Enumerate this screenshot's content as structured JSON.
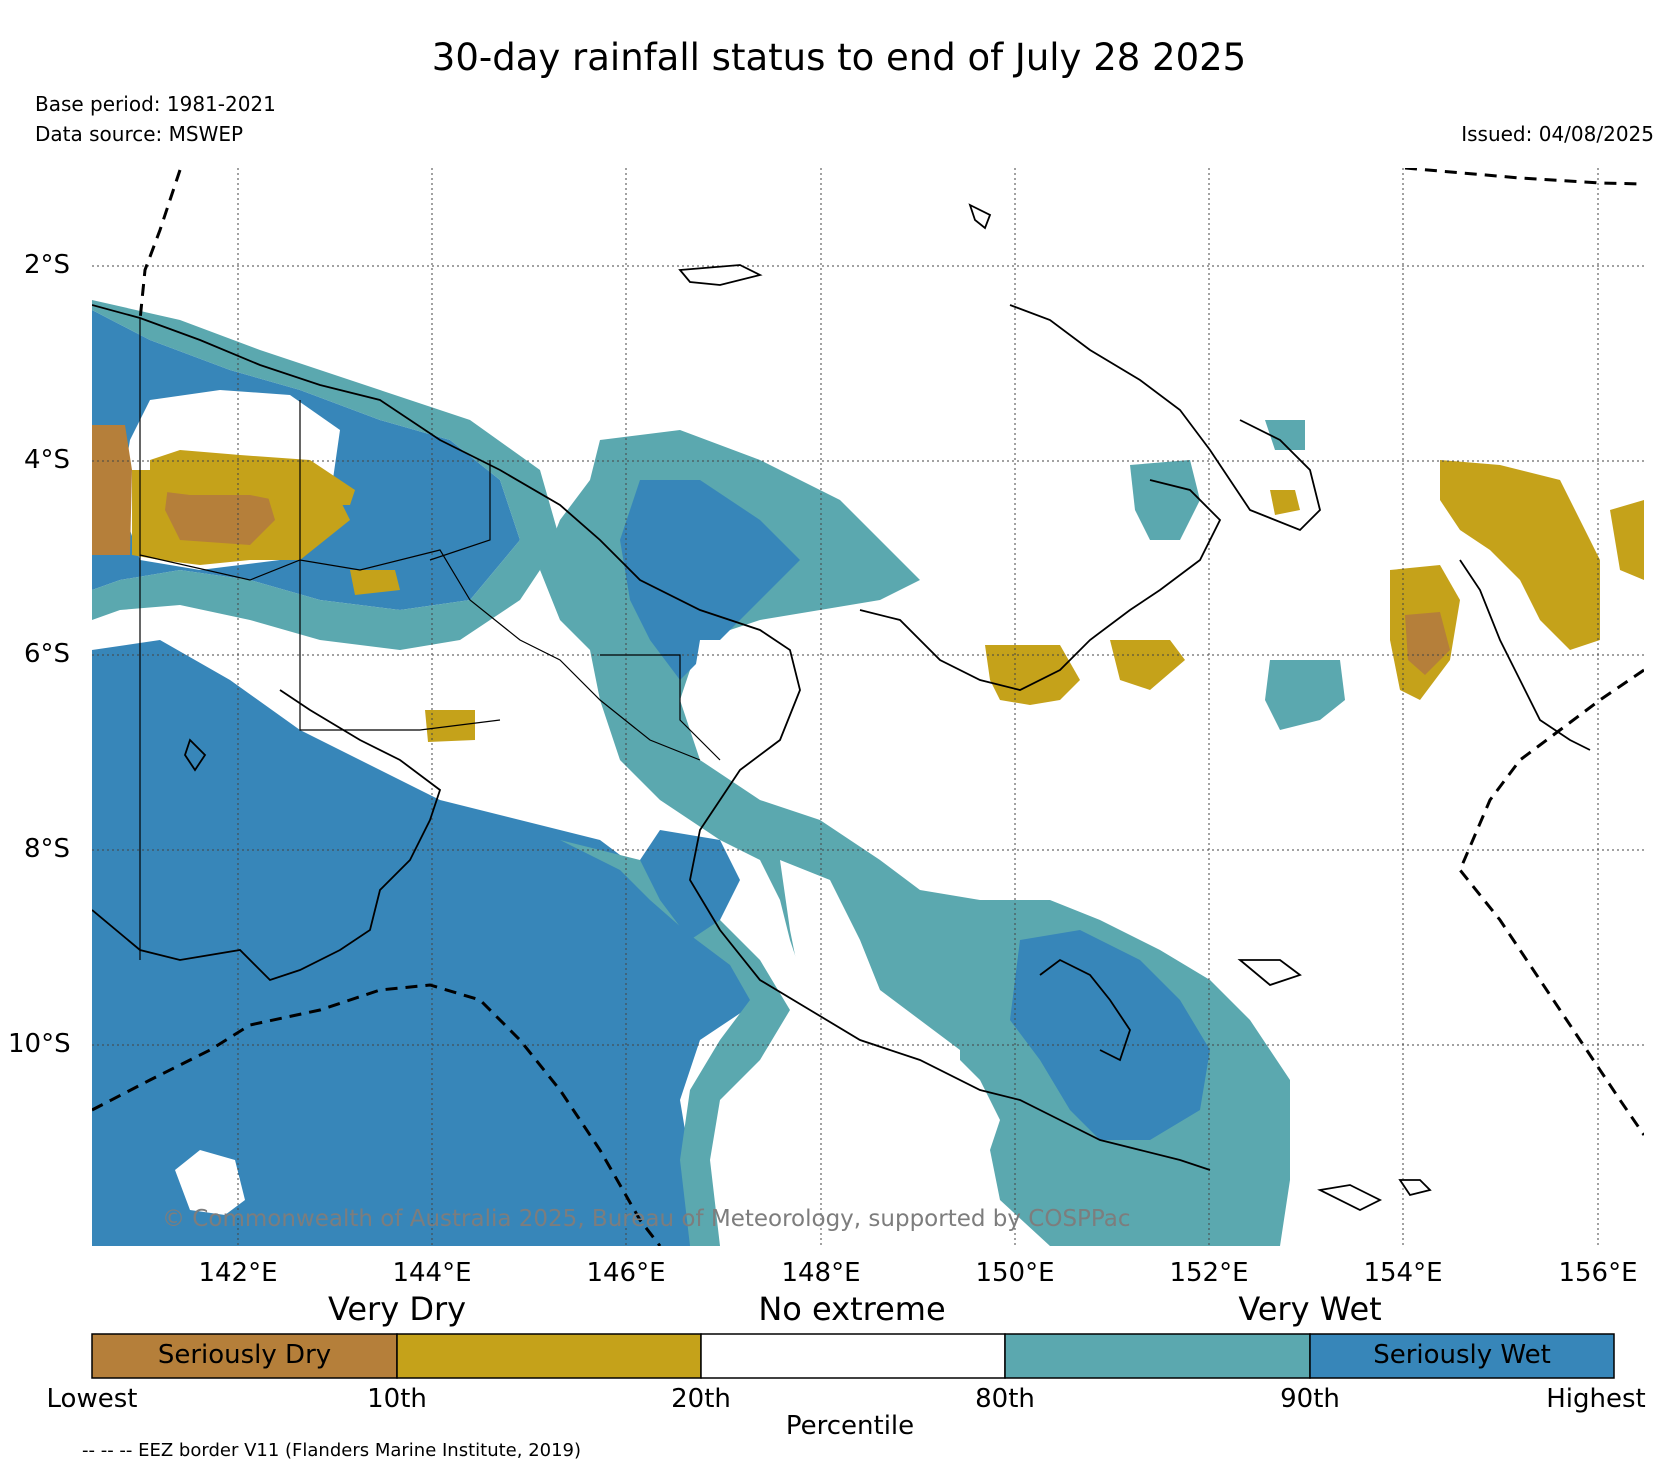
{
  "title": "30-day rainfall status to end of July 28 2025",
  "base_period": "Base period: 1981-2021",
  "data_source": "Data source: MSWEP",
  "issued": "Issued: 04/08/2025",
  "copyright": "© Commonwealth of Australia 2025, Bureau of Meteorology, supported by COSPPac",
  "eez_note": "-- -- -- EEZ border V11 (Flanders Marine Institute, 2019)",
  "map": {
    "lat_labels": [
      "2°S",
      "4°S",
      "6°S",
      "8°S",
      "10°S"
    ],
    "lon_labels": [
      "142°E",
      "144°E",
      "146°E",
      "148°E",
      "150°E",
      "152°E",
      "154°E",
      "156°E"
    ]
  },
  "legend": {
    "categories": [
      "Very Dry",
      "No extreme",
      "Very Wet"
    ],
    "bins": [
      {
        "label": "Seriously Dry",
        "color": "#b57f3a"
      },
      {
        "label": "",
        "color": "#c5a21a"
      },
      {
        "label": "",
        "color": "#ffffff"
      },
      {
        "label": "",
        "color": "#5ba8af"
      },
      {
        "label": "Seriously Wet",
        "color": "#3786b9"
      }
    ],
    "ticks": [
      "Lowest",
      "10th",
      "20th",
      "80th",
      "90th",
      "Highest"
    ],
    "axis_label": "Percentile"
  },
  "colors": {
    "seriously_dry": "#b57f3a",
    "very_dry": "#c5a21a",
    "very_wet": "#5ba8af",
    "seriously_wet": "#3786b9"
  }
}
